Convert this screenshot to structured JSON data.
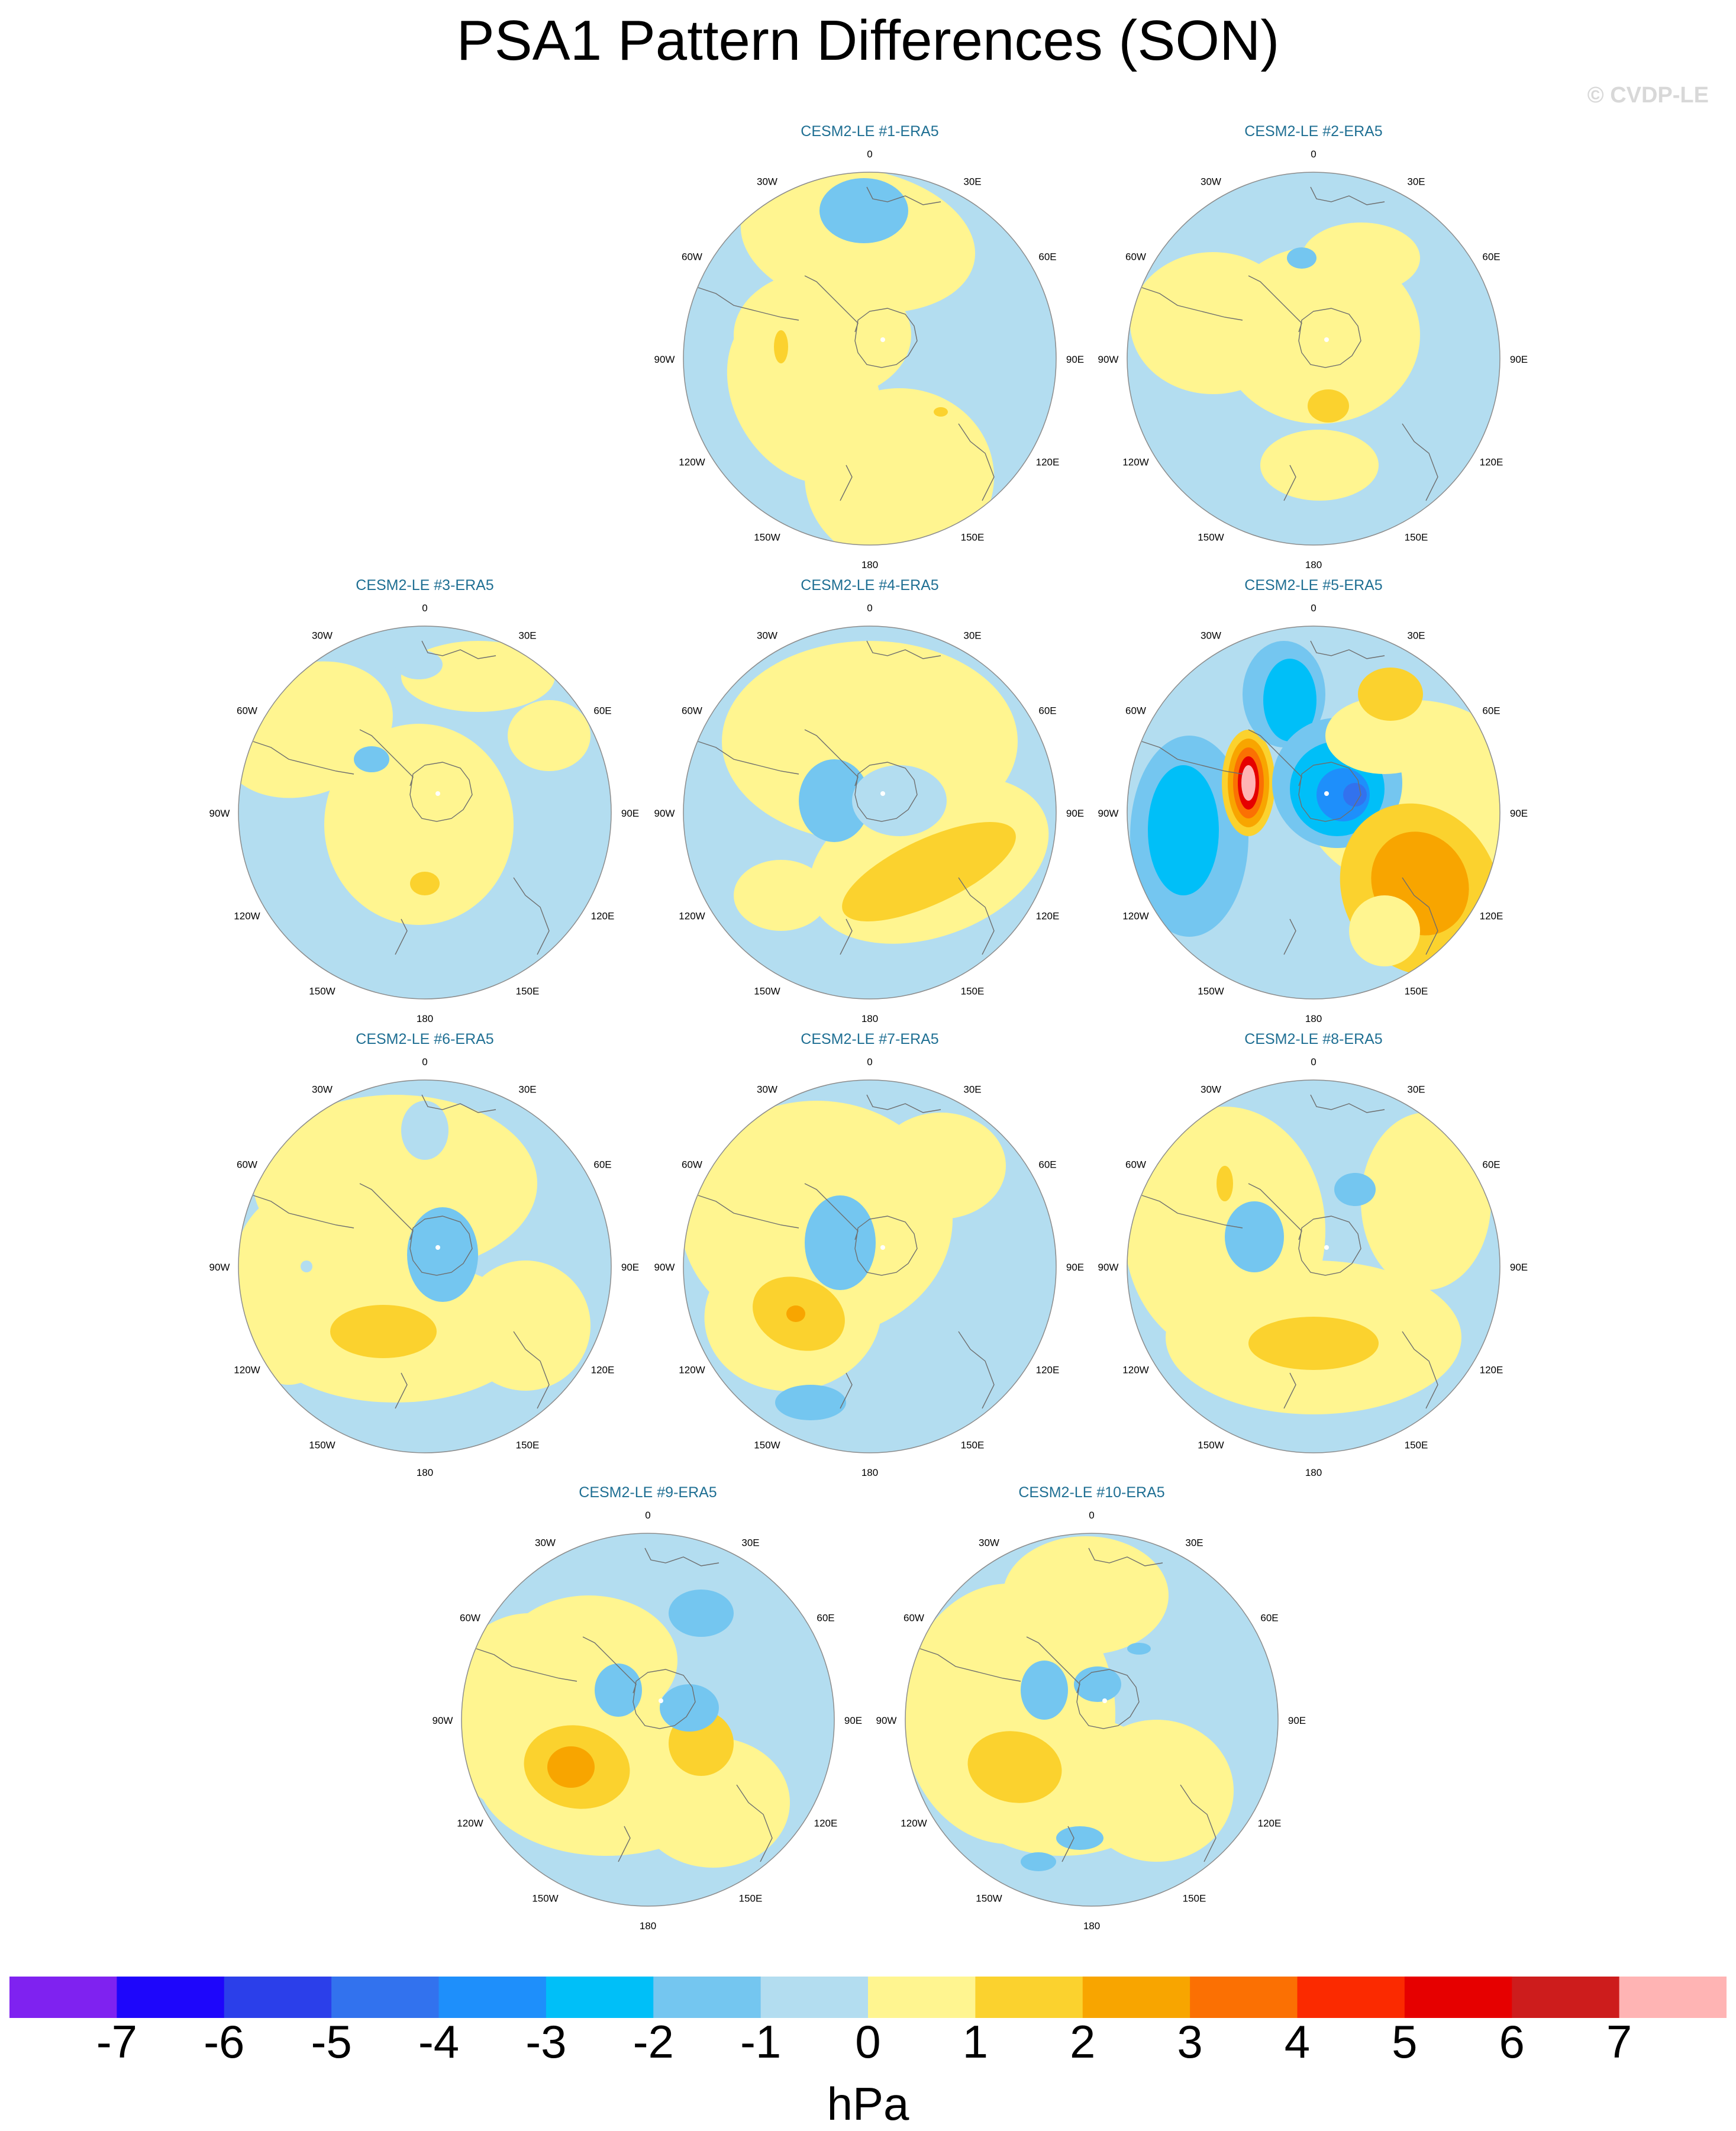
{
  "title": "PSA1 Pattern Differences (SON)",
  "credit": "© CVDP-LE",
  "lon_labels": [
    "0",
    "30E",
    "60E",
    "90E",
    "120E",
    "150E",
    "180",
    "150W",
    "120W",
    "90W",
    "60W",
    "30W"
  ],
  "panels": [
    {
      "title": "CESM2-LE #1-ERA5"
    },
    {
      "title": "CESM2-LE #2-ERA5"
    },
    {
      "title": "CESM2-LE #3-ERA5"
    },
    {
      "title": "CESM2-LE #4-ERA5"
    },
    {
      "title": "CESM2-LE #5-ERA5"
    },
    {
      "title": "CESM2-LE #6-ERA5"
    },
    {
      "title": "CESM2-LE #7-ERA5"
    },
    {
      "title": "CESM2-LE #8-ERA5"
    },
    {
      "title": "CESM2-LE #9-ERA5"
    },
    {
      "title": "CESM2-LE #10-ERA5"
    }
  ],
  "colorbar": {
    "colors": [
      "#7f22f0",
      "#1e06fb",
      "#2b3fea",
      "#3272ee",
      "#1e8ffb",
      "#00bff8",
      "#74c6f0",
      "#b3ddf0",
      "#fff590",
      "#fbd22e",
      "#f8a500",
      "#fb7003",
      "#fb2a00",
      "#e60000",
      "#cd1c1c",
      "#ffb4b4"
    ],
    "labels": [
      "-7",
      "-6",
      "-5",
      "-4",
      "-3",
      "-2",
      "-1",
      "0",
      "1",
      "2",
      "3",
      "4",
      "5",
      "6",
      "7"
    ],
    "unit": "hPa"
  }
}
